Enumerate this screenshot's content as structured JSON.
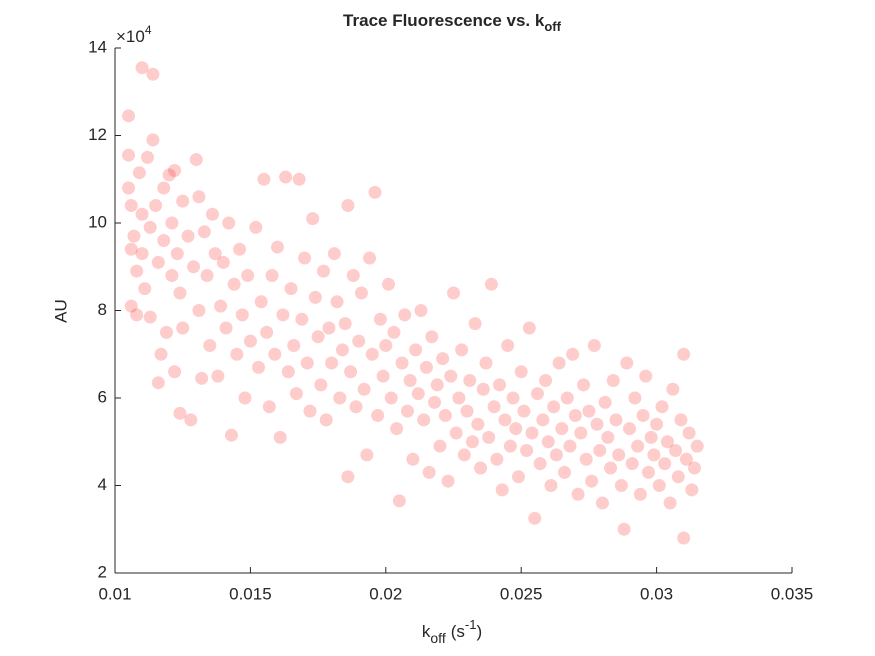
{
  "chart_data": {
    "type": "scatter",
    "title": "Trace Fluorescence vs. k",
    "title_subscript": "off",
    "xlabel": "k",
    "xlabel_subscript": "off",
    "xlabel_unit": "(s",
    "xlabel_unit_superscript": "-1",
    "xlabel_unit_end": ")",
    "ylabel": "AU",
    "y_exponent_base": "×10",
    "y_exponent": "4",
    "xlim": [
      0.01,
      0.035
    ],
    "xticks": [
      0.01,
      0.015,
      0.02,
      0.025,
      0.03,
      0.035
    ],
    "ylim": [
      20000,
      140000
    ],
    "yticks": [
      {
        "value": 20000,
        "label": "2"
      },
      {
        "value": 40000,
        "label": "4"
      },
      {
        "value": 60000,
        "label": "6"
      },
      {
        "value": 80000,
        "label": "8"
      },
      {
        "value": 100000,
        "label": "10"
      },
      {
        "value": 120000,
        "label": "12"
      },
      {
        "value": 140000,
        "label": "14"
      }
    ],
    "grid": false,
    "alpha": 0.2,
    "series": [
      {
        "color": "#ff0000",
        "x": [
          0.0105,
          0.0105,
          0.0105,
          0.0106,
          0.0106,
          0.0106,
          0.0107,
          0.0108,
          0.0108,
          0.0109,
          0.011,
          0.011,
          0.011,
          0.0111,
          0.0112,
          0.0113,
          0.0113,
          0.0114,
          0.0114,
          0.0115,
          0.0116,
          0.0116,
          0.0117,
          0.0118,
          0.0118,
          0.0119,
          0.012,
          0.0121,
          0.0121,
          0.0122,
          0.0122,
          0.0123,
          0.0124,
          0.0124,
          0.0125,
          0.0125,
          0.0127,
          0.0128,
          0.0129,
          0.013,
          0.0131,
          0.0131,
          0.0132,
          0.0133,
          0.0134,
          0.0135,
          0.0136,
          0.0137,
          0.0138,
          0.0139,
          0.014,
          0.0141,
          0.0142,
          0.0143,
          0.0144,
          0.0145,
          0.0146,
          0.0147,
          0.0148,
          0.0149,
          0.015,
          0.0152,
          0.0153,
          0.0154,
          0.0155,
          0.0156,
          0.0157,
          0.0158,
          0.0159,
          0.016,
          0.0161,
          0.0162,
          0.0163,
          0.0164,
          0.0165,
          0.0166,
          0.0167,
          0.0168,
          0.0169,
          0.017,
          0.0171,
          0.0172,
          0.0173,
          0.0174,
          0.0175,
          0.0176,
          0.0177,
          0.0178,
          0.0179,
          0.018,
          0.0181,
          0.0182,
          0.0183,
          0.0184,
          0.0185,
          0.0186,
          0.0186,
          0.0187,
          0.0188,
          0.0189,
          0.019,
          0.0191,
          0.0192,
          0.0193,
          0.0194,
          0.0195,
          0.0196,
          0.0197,
          0.0198,
          0.0199,
          0.02,
          0.0201,
          0.0202,
          0.0203,
          0.0204,
          0.0205,
          0.0206,
          0.0207,
          0.0208,
          0.0209,
          0.021,
          0.0211,
          0.0212,
          0.0213,
          0.0214,
          0.0215,
          0.0216,
          0.0217,
          0.0218,
          0.0219,
          0.022,
          0.0221,
          0.0222,
          0.0223,
          0.0224,
          0.0225,
          0.0226,
          0.0227,
          0.0228,
          0.0229,
          0.023,
          0.0231,
          0.0232,
          0.0233,
          0.0234,
          0.0235,
          0.0236,
          0.0237,
          0.0238,
          0.0239,
          0.024,
          0.0241,
          0.0242,
          0.0243,
          0.0244,
          0.0245,
          0.0246,
          0.0247,
          0.0248,
          0.0249,
          0.025,
          0.0251,
          0.0252,
          0.0253,
          0.0254,
          0.0255,
          0.0256,
          0.0257,
          0.0258,
          0.0259,
          0.026,
          0.0261,
          0.0262,
          0.0263,
          0.0264,
          0.0265,
          0.0266,
          0.0267,
          0.0268,
          0.0269,
          0.027,
          0.0271,
          0.0272,
          0.0273,
          0.0274,
          0.0275,
          0.0276,
          0.0277,
          0.0278,
          0.0279,
          0.028,
          0.0281,
          0.0282,
          0.0283,
          0.0284,
          0.0285,
          0.0286,
          0.0287,
          0.0288,
          0.0289,
          0.029,
          0.0291,
          0.0292,
          0.0293,
          0.0294,
          0.0295,
          0.0296,
          0.0297,
          0.0298,
          0.0299,
          0.03,
          0.0301,
          0.0302,
          0.0303,
          0.0304,
          0.0305,
          0.0306,
          0.0307,
          0.0308,
          0.0309,
          0.031,
          0.031,
          0.0311,
          0.0312,
          0.0313,
          0.0314,
          0.0315
        ],
        "values": [
          124500,
          115500,
          108000,
          104000,
          94000,
          81000,
          97000,
          89000,
          79000,
          111500,
          135500,
          102000,
          93000,
          85000,
          115000,
          99000,
          78500,
          134000,
          119000,
          104000,
          91000,
          63500,
          70000,
          108000,
          96000,
          75000,
          111000,
          88000,
          100000,
          66000,
          112000,
          93000,
          56500,
          84000,
          105000,
          76000,
          97000,
          55000,
          90000,
          114500,
          106000,
          80000,
          64500,
          98000,
          88000,
          72000,
          102000,
          93000,
          65000,
          81000,
          91000,
          76000,
          100000,
          51500,
          86000,
          70000,
          94000,
          79000,
          60000,
          88000,
          73000,
          99000,
          67000,
          82000,
          110000,
          75000,
          58000,
          88000,
          70000,
          94500,
          51000,
          79000,
          110500,
          66000,
          85000,
          72000,
          61000,
          110000,
          78000,
          92000,
          68000,
          57000,
          101000,
          83000,
          74000,
          63000,
          89000,
          55000,
          76000,
          68000,
          93000,
          82000,
          60000,
          71000,
          77000,
          104000,
          42000,
          66000,
          88000,
          58000,
          73000,
          84000,
          62000,
          47000,
          92000,
          70000,
          107000,
          56000,
          78000,
          65000,
          72000,
          86000,
          60000,
          75000,
          53000,
          36500,
          68000,
          79000,
          57000,
          64000,
          46000,
          71000,
          61000,
          80000,
          55000,
          67000,
          43000,
          74000,
          59000,
          63000,
          49000,
          69000,
          56000,
          41000,
          65000,
          84000,
          52000,
          60000,
          71000,
          47000,
          57000,
          64000,
          50000,
          77000,
          54000,
          44000,
          62000,
          68000,
          51000,
          86000,
          58000,
          46000,
          63000,
          39000,
          55000,
          72000,
          49000,
          60000,
          53000,
          42000,
          66000,
          57000,
          48000,
          76000,
          52000,
          32500,
          61000,
          45000,
          55000,
          64000,
          50000,
          40000,
          58000,
          47000,
          68000,
          53000,
          43000,
          60000,
          49000,
          70000,
          56000,
          38000,
          52000,
          63000,
          46000,
          57000,
          41000,
          72000,
          54000,
          48000,
          36000,
          59000,
          51000,
          44000,
          64000,
          55000,
          47000,
          40000,
          30000,
          68000,
          53000,
          45000,
          60000,
          49000,
          38000,
          56000,
          65000,
          43000,
          51000,
          47000,
          54000,
          40000,
          58000,
          45000,
          50000,
          36000,
          62000,
          48000,
          42000,
          55000,
          28000,
          70000,
          46000,
          52000,
          39000,
          44000,
          49000
        ]
      }
    ]
  }
}
